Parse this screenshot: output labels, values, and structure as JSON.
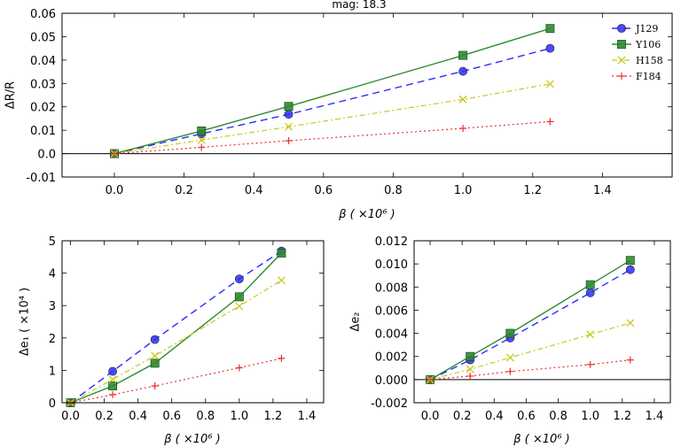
{
  "figure_title": "mag: 18.3",
  "series_styles": [
    {
      "name": "J129",
      "color": "#2b2bff",
      "marker": "circle",
      "dash": "8,5",
      "width": 1.4
    },
    {
      "name": "Y106",
      "color": "#2e8b2e",
      "marker": "square",
      "dash": "",
      "width": 1.4
    },
    {
      "name": "H158",
      "color": "#c8c820",
      "marker": "x",
      "dash": "6,3,2,3",
      "width": 1.2
    },
    {
      "name": "F184",
      "color": "#ee3030",
      "marker": "plus",
      "dash": "2,3",
      "width": 1.2
    }
  ],
  "chart_data": [
    {
      "type": "line",
      "title": "mag: 18.3",
      "xlabel": "β ( ×10⁶ )",
      "ylabel": "ΔR/R",
      "xlim": [
        -0.15,
        1.6
      ],
      "ylim": [
        -0.01,
        0.06
      ],
      "xticks": [
        0.0,
        0.2,
        0.4,
        0.6,
        0.8,
        1.0,
        1.2,
        1.4
      ],
      "xtick_labels": [
        "0.0",
        "0.2",
        "0.4",
        "0.6",
        "0.8",
        "1.0",
        "1.2",
        "1.4"
      ],
      "yticks": [
        -0.01,
        0.0,
        0.01,
        0.02,
        0.03,
        0.04,
        0.05,
        0.06
      ],
      "ytick_labels": [
        "-0.01",
        "0.0",
        "0.01",
        "0.02",
        "0.03",
        "0.04",
        "0.05",
        "0.06"
      ],
      "zero_line": true,
      "legend": "top-right",
      "x": [
        0.0,
        0.25,
        0.5,
        1.0,
        1.25
      ],
      "series": [
        {
          "name": "J129",
          "values": [
            0.0,
            0.0085,
            0.0168,
            0.0352,
            0.045
          ]
        },
        {
          "name": "Y106",
          "values": [
            0.0,
            0.0097,
            0.0202,
            0.042,
            0.0535
          ]
        },
        {
          "name": "H158",
          "values": [
            0.0,
            0.0058,
            0.0115,
            0.0232,
            0.0298
          ]
        },
        {
          "name": "F184",
          "values": [
            0.0,
            0.0027,
            0.0055,
            0.0108,
            0.0137
          ]
        }
      ]
    },
    {
      "type": "line",
      "title": "",
      "xlabel": "β ( ×10⁶ )",
      "ylabel": "Δe₁ ( ×10⁴ )",
      "xlim": [
        -0.05,
        1.5
      ],
      "ylim": [
        0,
        5
      ],
      "xticks": [
        0.0,
        0.2,
        0.4,
        0.6,
        0.8,
        1.0,
        1.2,
        1.4
      ],
      "xtick_labels": [
        "0.0",
        "0.2",
        "0.4",
        "0.6",
        "0.8",
        "1.0",
        "1.2",
        "1.4"
      ],
      "yticks": [
        0,
        1,
        2,
        3,
        4,
        5
      ],
      "ytick_labels": [
        "0",
        "1",
        "2",
        "3",
        "4",
        "5"
      ],
      "zero_line": false,
      "x": [
        0.0,
        0.25,
        0.5,
        1.0,
        1.25
      ],
      "series": [
        {
          "name": "J129",
          "values": [
            0.0,
            0.97,
            1.95,
            3.82,
            4.68
          ]
        },
        {
          "name": "Y106",
          "values": [
            0.0,
            0.52,
            1.22,
            3.27,
            4.62
          ]
        },
        {
          "name": "H158",
          "values": [
            0.0,
            0.72,
            1.45,
            2.98,
            3.78
          ]
        },
        {
          "name": "F184",
          "values": [
            0.0,
            0.25,
            0.52,
            1.08,
            1.37
          ]
        }
      ]
    },
    {
      "type": "line",
      "title": "",
      "xlabel": "β ( ×10⁶ )",
      "ylabel": "Δe₂",
      "xlim": [
        -0.1,
        1.5
      ],
      "ylim": [
        -0.002,
        0.012
      ],
      "xticks": [
        0.0,
        0.2,
        0.4,
        0.6,
        0.8,
        1.0,
        1.2,
        1.4
      ],
      "xtick_labels": [
        "0.0",
        "0.2",
        "0.4",
        "0.6",
        "0.8",
        "1.0",
        "1.2",
        "1.4"
      ],
      "yticks": [
        -0.002,
        0.0,
        0.002,
        0.004,
        0.006,
        0.008,
        0.01,
        0.012
      ],
      "ytick_labels": [
        "-0.002",
        "0.000",
        "0.002",
        "0.004",
        "0.006",
        "0.008",
        "0.010",
        "0.012"
      ],
      "zero_line": true,
      "x": [
        0.0,
        0.25,
        0.5,
        1.0,
        1.25
      ],
      "series": [
        {
          "name": "J129",
          "values": [
            0.0,
            0.0017,
            0.0036,
            0.0075,
            0.0095
          ]
        },
        {
          "name": "Y106",
          "values": [
            0.0,
            0.002,
            0.004,
            0.0082,
            0.0103
          ]
        },
        {
          "name": "H158",
          "values": [
            0.0,
            0.0009,
            0.0019,
            0.0039,
            0.0049
          ]
        },
        {
          "name": "F184",
          "values": [
            0.0,
            0.0003,
            0.0007,
            0.0013,
            0.0017
          ]
        }
      ]
    }
  ]
}
